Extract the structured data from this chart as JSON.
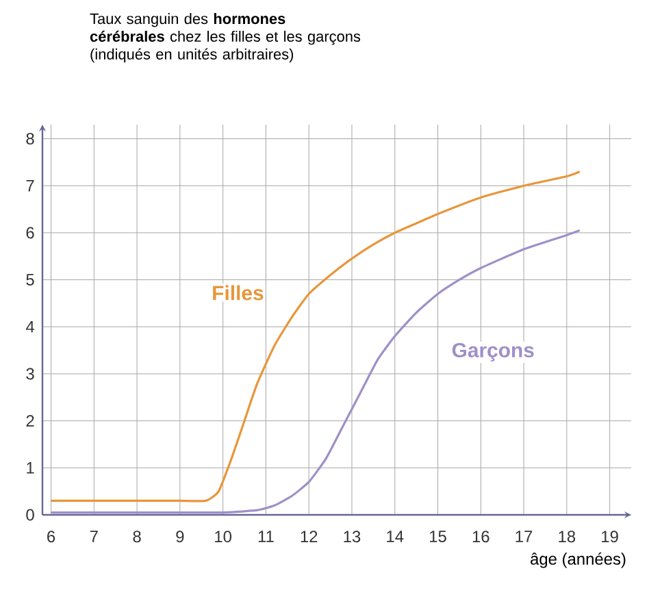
{
  "chart_data": {
    "type": "line",
    "title": "Taux sanguin des **hormones cérébrales** chez les filles et les garçons",
    "subtitle": "(indiqués en unités arbitraires)",
    "xlabel": "âge (années)",
    "xlim": [
      5.8,
      19.5
    ],
    "ylim": [
      0,
      8.3
    ],
    "xticks": [
      6,
      7,
      8,
      9,
      10,
      11,
      12,
      13,
      14,
      15,
      16,
      17,
      18,
      19
    ],
    "yticks": [
      0,
      1,
      2,
      3,
      4,
      5,
      6,
      7,
      8
    ],
    "grid": true,
    "legend": false,
    "marker": "none",
    "line_style": "solid",
    "series": [
      {
        "name": "Filles",
        "color": "#e8963a",
        "x": [
          6,
          7,
          8,
          9,
          9.6,
          9.9,
          10.2,
          10.5,
          10.8,
          11.2,
          11.6,
          12,
          12.5,
          13,
          13.5,
          14,
          14.5,
          15,
          16,
          17,
          18,
          18.3
        ],
        "values": [
          0.3,
          0.3,
          0.3,
          0.3,
          0.3,
          0.5,
          1.2,
          2.0,
          2.8,
          3.6,
          4.2,
          4.7,
          5.1,
          5.45,
          5.75,
          6.0,
          6.2,
          6.4,
          6.75,
          7.0,
          7.2,
          7.3
        ]
      },
      {
        "name": "Garçons",
        "color": "#9f8fc8",
        "x": [
          6,
          8,
          10,
          10.8,
          11.2,
          11.6,
          12,
          12.4,
          12.8,
          13.2,
          13.6,
          14,
          14.5,
          15,
          15.5,
          16,
          17,
          18,
          18.3
        ],
        "values": [
          0.05,
          0.05,
          0.05,
          0.1,
          0.2,
          0.4,
          0.7,
          1.2,
          1.9,
          2.6,
          3.3,
          3.8,
          4.3,
          4.7,
          5.0,
          5.25,
          5.65,
          5.95,
          6.05
        ]
      }
    ]
  }
}
